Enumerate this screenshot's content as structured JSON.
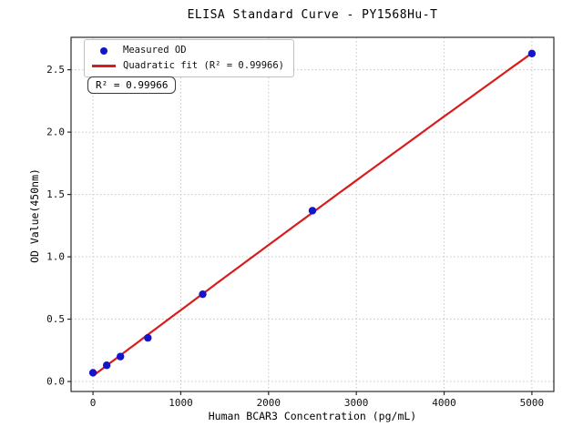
{
  "chart_data": {
    "type": "scatter",
    "title": "ELISA Standard Curve - PY1568Hu-T",
    "xlabel": "Human BCAR3 Concentration (pg/mL)",
    "ylabel": "OD Value(450nm)",
    "xlim": [
      -250,
      5250
    ],
    "ylim": [
      -0.08,
      2.76
    ],
    "xticks": [
      0,
      1000,
      2000,
      3000,
      4000,
      5000
    ],
    "xtick_labels": [
      "0",
      "1000",
      "2000",
      "3000",
      "4000",
      "5000"
    ],
    "yticks": [
      0.0,
      0.5,
      1.0,
      1.5,
      2.0,
      2.5
    ],
    "ytick_labels": [
      "0.0",
      "0.5",
      "1.0",
      "1.5",
      "2.0",
      "2.5"
    ],
    "grid": true,
    "legend_position": "upper-left",
    "series": [
      {
        "name": "Measured OD",
        "type": "scatter",
        "marker": "circle",
        "color": "#1414cc",
        "x": [
          0,
          156.25,
          312.5,
          625,
          1250,
          2500,
          5000
        ],
        "y": [
          0.07,
          0.13,
          0.2,
          0.35,
          0.7,
          1.37,
          2.63
        ]
      },
      {
        "name": "Quadratic fit (R² = 0.99966)",
        "type": "line",
        "color": "#d81c1c",
        "fit": {
          "kind": "quadratic",
          "a": 0.0454,
          "b": 0.00052936,
          "c": -2.35e-09,
          "x_range": [
            0,
            5000
          ]
        },
        "r_squared": 0.99966
      }
    ],
    "annotation": {
      "text": "R² = 0.99966"
    },
    "colors": {
      "spine": "#2a2a2a",
      "grid": "#c6c6c6",
      "text": "#111111",
      "scatter": "#1414cc",
      "fit_line": "#d81c1c"
    }
  }
}
